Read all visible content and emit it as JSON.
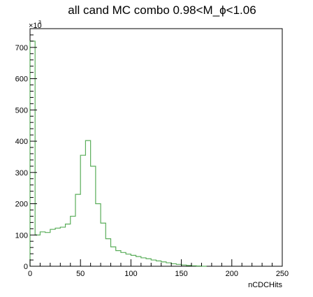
{
  "chart_data": {
    "type": "histogram",
    "title": "all cand MC combo 0.98<M_ϕ<1.06",
    "xlabel": "nCDCHits",
    "ylabel": "",
    "y_multiplier_label": "×10",
    "y_multiplier_exponent": "3",
    "xlim": [
      0,
      250
    ],
    "ylim": [
      0,
      760000
    ],
    "bin_width": 5,
    "x_ticks": [
      0,
      50,
      100,
      150,
      200,
      250
    ],
    "x_tick_labels": [
      "0",
      "50",
      "100",
      "150",
      "200",
      "250"
    ],
    "y_ticks": [
      0,
      100000,
      200000,
      300000,
      400000,
      500000,
      600000,
      700000
    ],
    "y_tick_labels": [
      "0",
      "100",
      "200",
      "300",
      "400",
      "500",
      "600",
      "700"
    ],
    "line_color": "#5aad5a",
    "bins": [
      {
        "x0": 0,
        "value": 720000
      },
      {
        "x0": 5,
        "value": 100000
      },
      {
        "x0": 10,
        "value": 110000
      },
      {
        "x0": 15,
        "value": 108000
      },
      {
        "x0": 20,
        "value": 118000
      },
      {
        "x0": 25,
        "value": 122000
      },
      {
        "x0": 30,
        "value": 125000
      },
      {
        "x0": 35,
        "value": 135000
      },
      {
        "x0": 40,
        "value": 160000
      },
      {
        "x0": 45,
        "value": 230000
      },
      {
        "x0": 50,
        "value": 355000
      },
      {
        "x0": 55,
        "value": 402000
      },
      {
        "x0": 60,
        "value": 320000
      },
      {
        "x0": 65,
        "value": 200000
      },
      {
        "x0": 70,
        "value": 138000
      },
      {
        "x0": 75,
        "value": 88000
      },
      {
        "x0": 80,
        "value": 62000
      },
      {
        "x0": 85,
        "value": 50000
      },
      {
        "x0": 90,
        "value": 44000
      },
      {
        "x0": 95,
        "value": 39000
      },
      {
        "x0": 100,
        "value": 35000
      },
      {
        "x0": 105,
        "value": 31000
      },
      {
        "x0": 110,
        "value": 27000
      },
      {
        "x0": 115,
        "value": 24000
      },
      {
        "x0": 120,
        "value": 20000
      },
      {
        "x0": 125,
        "value": 17000
      },
      {
        "x0": 130,
        "value": 14000
      },
      {
        "x0": 135,
        "value": 11000
      },
      {
        "x0": 140,
        "value": 8000
      },
      {
        "x0": 145,
        "value": 6000
      },
      {
        "x0": 150,
        "value": 4000
      },
      {
        "x0": 155,
        "value": 2500
      },
      {
        "x0": 160,
        "value": 1500
      },
      {
        "x0": 165,
        "value": 800
      },
      {
        "x0": 170,
        "value": 0
      }
    ]
  }
}
